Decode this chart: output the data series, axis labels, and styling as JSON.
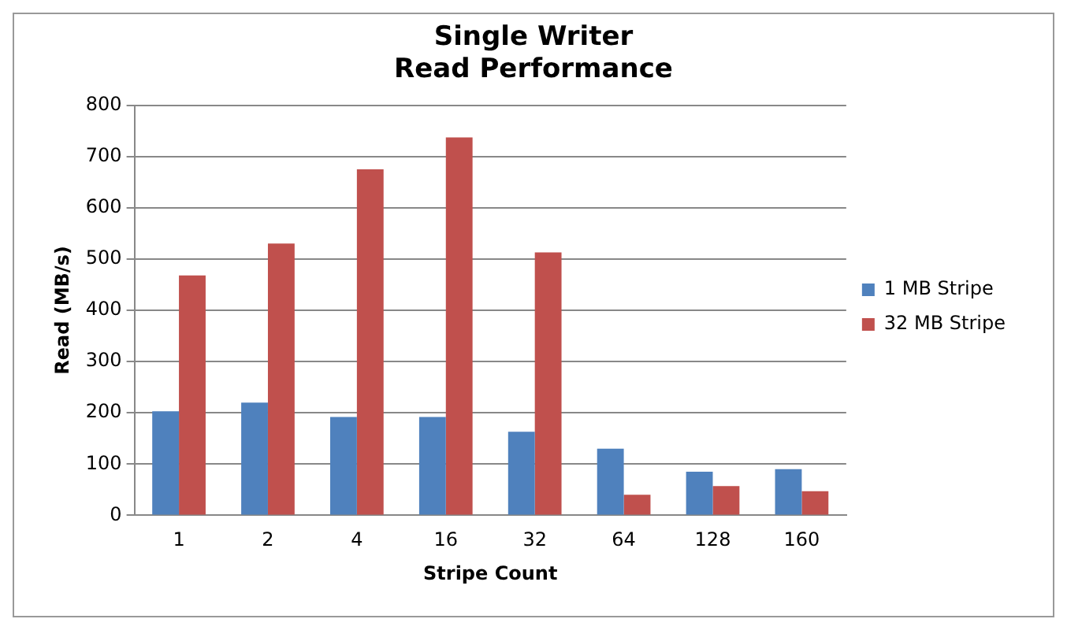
{
  "chart_data": {
    "type": "bar",
    "title": "Single Writer\nRead Performance",
    "xlabel": "Stripe Count",
    "ylabel": "Read (MB/s)",
    "categories": [
      "1",
      "2",
      "4",
      "16",
      "32",
      "64",
      "128",
      "160"
    ],
    "series": [
      {
        "name": "1 MB Stripe",
        "color": "#4f81bd",
        "values": [
          203,
          220,
          192,
          192,
          163,
          130,
          85,
          90
        ]
      },
      {
        "name": "32 MB Stripe",
        "color": "#c0504d",
        "values": [
          468,
          530,
          675,
          737,
          513,
          40,
          57,
          47
        ]
      }
    ],
    "ylim": [
      0,
      800
    ],
    "yticks": [
      0,
      100,
      200,
      300,
      400,
      500,
      600,
      700,
      800
    ],
    "grid": "y",
    "legend": "right"
  }
}
